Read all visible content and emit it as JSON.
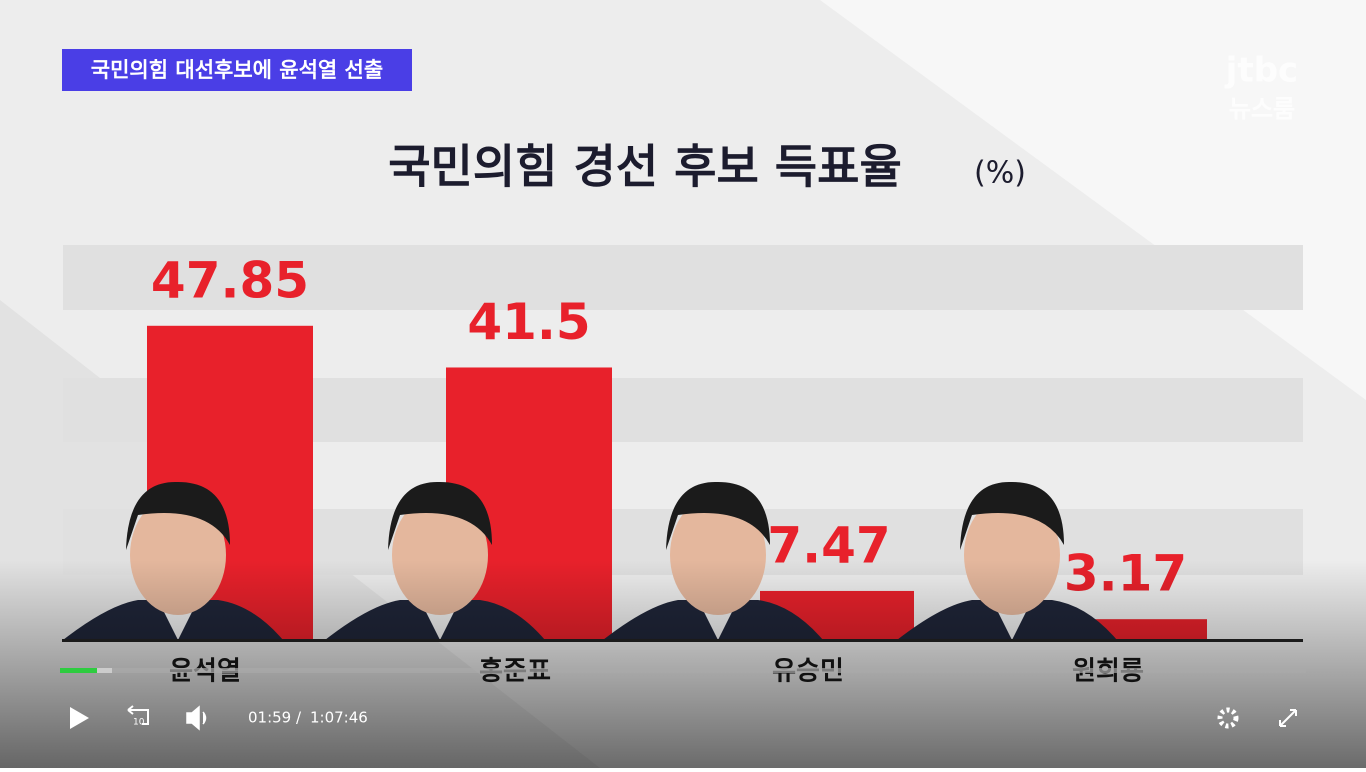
{
  "caption": "국민의힘 대선후보에 윤석열 선출",
  "logo": {
    "brand": "jtbc",
    "program": "뉴스룸"
  },
  "chart_data": {
    "type": "bar",
    "title": "국민의힘 경선 후보 득표율",
    "unit": "(%)",
    "categories": [
      "윤석열",
      "홍준표",
      "유승민",
      "원희룡"
    ],
    "values": [
      47.85,
      41.5,
      7.47,
      3.17
    ],
    "color": "#e8212b",
    "ylim": [
      0,
      60
    ]
  },
  "player": {
    "current_time": "01:59",
    "separator": "/",
    "duration": "1:07:46",
    "skip_seconds": "10"
  }
}
